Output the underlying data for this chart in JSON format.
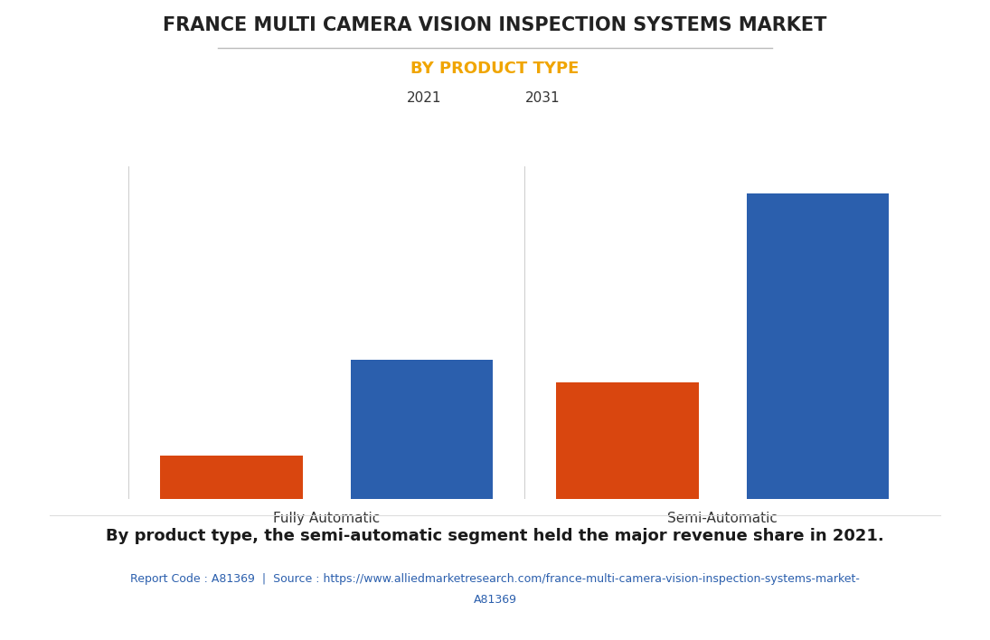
{
  "title": "FRANCE MULTI CAMERA VISION INSPECTION SYSTEMS MARKET",
  "subtitle": "BY PRODUCT TYPE",
  "categories": [
    "Fully Automatic",
    "Semi-Automatic"
  ],
  "series": [
    {
      "label": "2021",
      "values": [
        13,
        35
      ],
      "color": "#d9460f"
    },
    {
      "label": "2031",
      "values": [
        42,
        92
      ],
      "color": "#2b5fad"
    }
  ],
  "background_color": "#ffffff",
  "plot_background_color": "#ffffff",
  "title_color": "#222222",
  "subtitle_color": "#f0a500",
  "ylim": [
    0,
    100
  ],
  "grid_color": "#cccccc",
  "bar_width": 0.18,
  "footer_text": "By product type, the semi-automatic segment held the major revenue share in 2021.",
  "source_line1": "Report Code : A81369  |  Source : https://www.alliedmarketresearch.com/france-multi-camera-vision-inspection-systems-market-",
  "source_line2": "A81369",
  "footer_color": "#1a1a1a",
  "source_color": "#2b5fad",
  "title_fontsize": 15,
  "subtitle_fontsize": 13,
  "legend_fontsize": 11,
  "tick_fontsize": 11,
  "footer_fontsize": 13,
  "source_fontsize": 9,
  "divider_color": "#bbbbbb"
}
